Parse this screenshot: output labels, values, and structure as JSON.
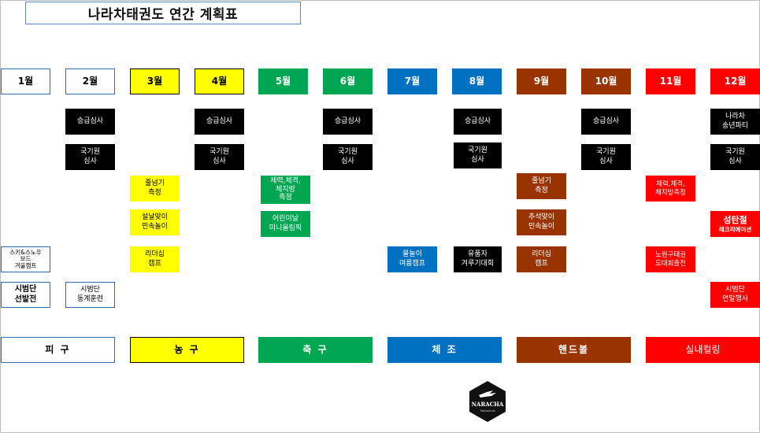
{
  "title": "나라차태권도 연간 계획표",
  "months": [
    {
      "label": "1월",
      "bg": "#ffffff",
      "fg": "#000000",
      "border": "#2e6bb0"
    },
    {
      "label": "2월",
      "bg": "#ffffff",
      "fg": "#000000",
      "border": "#2e6bb0"
    },
    {
      "label": "3월",
      "bg": "#ffff00",
      "fg": "#000000",
      "border": "#000000"
    },
    {
      "label": "4월",
      "bg": "#ffff00",
      "fg": "#000000",
      "border": "#000000"
    },
    {
      "label": "5월",
      "bg": "#00a651",
      "fg": "#ffffff",
      "border": "#00a651"
    },
    {
      "label": "6월",
      "bg": "#00a651",
      "fg": "#ffffff",
      "border": "#00a651"
    },
    {
      "label": "7월",
      "bg": "#0070c0",
      "fg": "#ffffff",
      "border": "#0070c0"
    },
    {
      "label": "8월",
      "bg": "#0070c0",
      "fg": "#ffffff",
      "border": "#0070c0"
    },
    {
      "label": "9월",
      "bg": "#993300",
      "fg": "#ffffff",
      "border": "#993300"
    },
    {
      "label": "10월",
      "bg": "#993300",
      "fg": "#ffffff",
      "border": "#993300"
    },
    {
      "label": "11월",
      "bg": "#ff0000",
      "fg": "#ffffff",
      "border": "#ff0000"
    },
    {
      "label": "12월",
      "bg": "#ff0000",
      "fg": "#ffffff",
      "border": "#ff0000"
    }
  ],
  "events": {
    "jan_winter_camp": "스키&스노우\n보드\n겨울캠프",
    "jan_demo_team": "시범단\n선발전",
    "feb_promotion": "승급심사",
    "feb_kukkiwon": "국기원\n심사",
    "feb_demo_training": "시범단\n동계훈련",
    "mar_jumprope": "줄넘기\n측정",
    "mar_lunar_games": "설날맞이\n민속놀이",
    "mar_leadership": "리더십\n캠프",
    "apr_promotion": "승급심사",
    "apr_kukkiwon": "국기원\n심사",
    "may_fitness": "체력,체격,\n체지방\n측정",
    "may_children_olympic": "어린이날\n미니올림픽",
    "jun_promotion": "승급심사",
    "jun_kukkiwon": "국기원\n심사",
    "jul_water_camp": "물놀이\n여름캠프",
    "aug_promotion": "승급심사",
    "aug_kukkiwon": "국기원\n심사",
    "aug_contest": "유품자\n겨루기대회",
    "sep_jumprope": "줄넘기\n측정",
    "sep_chuseok_games": "추석맞이\n민속놀이",
    "sep_leadership": "리더십\n캠프",
    "oct_promotion": "승급심사",
    "oct_kukkiwon": "국기원\n심사",
    "nov_fitness": "체력,체격,\n체지방측정",
    "nov_rope_contest": "노원구태권\n도대회출전",
    "dec_party": "나라차\n송년파티",
    "dec_kukkiwon": "국기원\n심사",
    "dec_christmas_title": "성탄절",
    "dec_christmas_sub": "레크리에이션",
    "dec_demo_year_end": "시범단\n연말행사"
  },
  "sports": [
    {
      "label": "피 구",
      "bg": "#ffffff",
      "fg": "#000000",
      "border": "#2e6bb0"
    },
    {
      "label": "농 구",
      "bg": "#ffff00",
      "fg": "#000000",
      "border": "#000000"
    },
    {
      "label": "축 구",
      "bg": "#00a651",
      "fg": "#ffffff",
      "border": "#00a651"
    },
    {
      "label": "체 조",
      "bg": "#0070c0",
      "fg": "#ffffff",
      "border": "#0070c0"
    },
    {
      "label": "핸드볼",
      "bg": "#993300",
      "fg": "#ffffff",
      "border": "#993300"
    },
    {
      "label": "실내컬링",
      "bg": "#ff0000",
      "fg": "#ffffff",
      "border": "#ff0000"
    }
  ],
  "logo": {
    "name": "NARACHA",
    "sub": "Taekwondo"
  },
  "colors": {
    "black": "#000000",
    "yellow": "#ffff00",
    "green": "#00a651",
    "blue": "#0070c0",
    "brown": "#993300",
    "red": "#ff0000"
  }
}
